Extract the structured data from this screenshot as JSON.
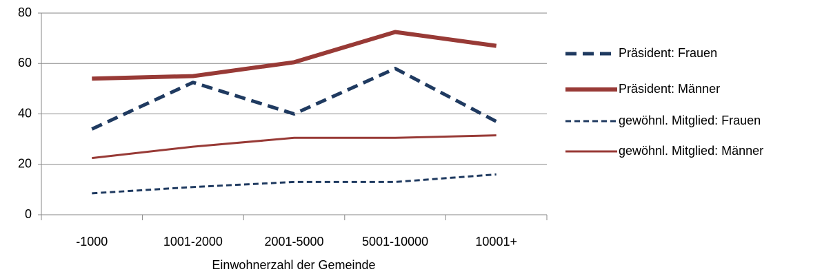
{
  "chart_data": {
    "type": "line",
    "x_label": "Einwohnerzahl der Gemeinde",
    "categories": [
      "-1000",
      "1001-2000",
      "2001-5000",
      "5001-10000",
      "10001+"
    ],
    "series": [
      {
        "name": "Präsident: Frauen",
        "color": "#1f3a60",
        "line_style": "dashed",
        "line_width": 5,
        "values": [
          34,
          52.5,
          40,
          58,
          37
        ]
      },
      {
        "name": "Präsident: Männer",
        "color": "#983a36",
        "line_style": "solid",
        "line_width": 6,
        "values": [
          54,
          55,
          60.5,
          72.5,
          67
        ]
      },
      {
        "name": "gewöhnl. Mitglied: Frauen",
        "color": "#1f3a60",
        "line_style": "dashed",
        "line_width": 3,
        "values": [
          8.5,
          11,
          13,
          13,
          16
        ]
      },
      {
        "name": "gewöhnl. Mitglied: Männer",
        "color": "#983a36",
        "line_style": "solid",
        "line_width": 3,
        "values": [
          22.5,
          27,
          30.5,
          30.5,
          31.5
        ]
      }
    ],
    "ylim": [
      0,
      80
    ],
    "yticks": [
      0,
      20,
      40,
      60,
      80
    ],
    "grid": true,
    "legend": "right"
  }
}
